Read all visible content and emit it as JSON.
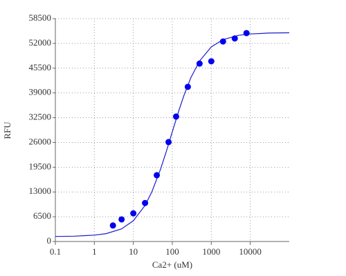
{
  "chart_data": {
    "type": "scatter",
    "x_label": "Ca2+ (uM)",
    "y_label": "RFU",
    "xscale": "log",
    "grid": true,
    "xlim": [
      0.1,
      100000
    ],
    "xticks": [
      0.1,
      1,
      10,
      100,
      1000,
      10000
    ],
    "ylim": [
      0,
      58500
    ],
    "yticks": [
      0,
      6500,
      13000,
      19500,
      26000,
      32500,
      39000,
      45500,
      52000,
      58500
    ],
    "points": {
      "color": "#0000ee",
      "x": [
        3,
        5,
        10,
        20,
        40,
        80,
        125,
        250,
        500,
        1000,
        2000,
        4000,
        8000
      ],
      "values": [
        4200,
        5800,
        7400,
        10100,
        17400,
        26100,
        32800,
        40600,
        46700,
        47300,
        52500,
        53300,
        54700
      ]
    },
    "fit": {
      "color": "#1a1acc",
      "x": [
        0.1,
        0.3,
        1,
        2,
        5,
        10,
        20,
        30,
        50,
        70,
        100,
        150,
        200,
        300,
        500,
        1000,
        2000,
        5000,
        10000,
        30000,
        100000
      ],
      "values": [
        1330,
        1400,
        1660,
        2060,
        3320,
        5450,
        9470,
        13050,
        18980,
        23600,
        28810,
        34630,
        38430,
        43030,
        47380,
        51070,
        52990,
        54120,
        54480,
        54710,
        54780
      ]
    }
  }
}
